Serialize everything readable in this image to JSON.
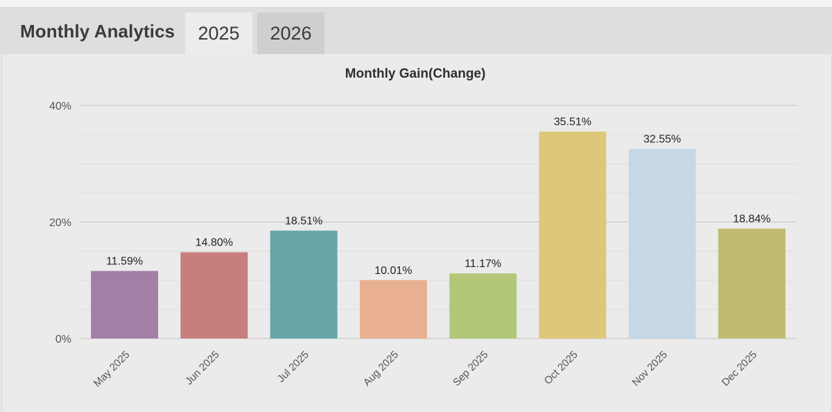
{
  "header": {
    "title": "Monthly Analytics",
    "tabs": [
      {
        "label": "2025",
        "active": true
      },
      {
        "label": "2026",
        "active": false
      }
    ]
  },
  "colors": {
    "bars": [
      "#a27fa4",
      "#c87e7d",
      "#66a6a7",
      "#e8b090",
      "#b3c778",
      "#dfc779",
      "#c6d7e6",
      "#c1bb71"
    ],
    "gridline": "#d4d4d4",
    "axis_text": "#555555",
    "label_text": "#222222"
  },
  "chart_data": {
    "type": "bar",
    "title": "Monthly Gain(Change)",
    "xlabel": "",
    "ylabel": "",
    "categories": [
      "May 2025",
      "Jun 2025",
      "Jul 2025",
      "Aug 2025",
      "Sep 2025",
      "Oct 2025",
      "Nov 2025",
      "Dec 2025"
    ],
    "values": [
      11.59,
      14.8,
      18.51,
      10.01,
      11.17,
      35.51,
      32.55,
      18.84
    ],
    "value_labels": [
      "11.59%",
      "14.80%",
      "18.51%",
      "10.01%",
      "11.17%",
      "35.51%",
      "32.55%",
      "18.84%"
    ],
    "ylim": [
      0,
      40
    ],
    "y_ticks": [
      0,
      20,
      40
    ],
    "y_tick_labels": [
      "0%",
      "20%",
      "40%"
    ],
    "grid": true,
    "legend": "none"
  }
}
